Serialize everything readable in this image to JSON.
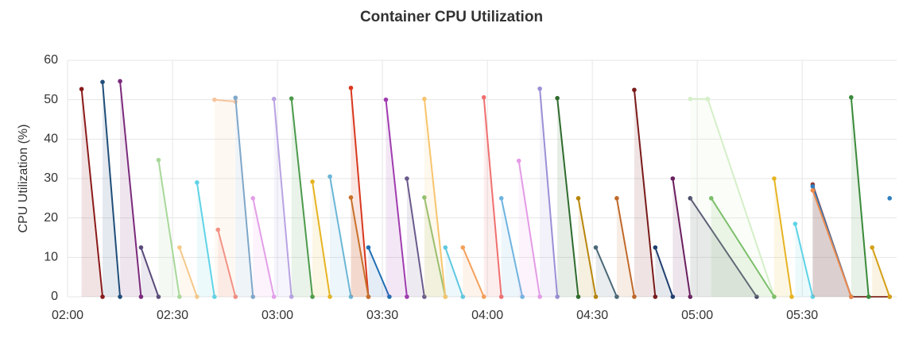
{
  "chart_data": {
    "type": "line",
    "title": "Container CPU Utilization",
    "y_label": "CPU Utilization (%)",
    "xlim": [
      "02:00",
      "05:57"
    ],
    "xticks": [
      "02:00",
      "02:30",
      "03:00",
      "03:30",
      "04:00",
      "04:30",
      "05:00",
      "05:30"
    ],
    "ylim": [
      0,
      60
    ],
    "yticks": [
      0,
      10,
      20,
      30,
      40,
      50,
      60
    ],
    "grid": true,
    "series": [
      {
        "color": "#8b1a1a",
        "x": [
          "02:04",
          "02:10"
        ],
        "values": [
          52.7,
          0
        ]
      },
      {
        "color": "#1f4e79",
        "x": [
          "02:10",
          "02:15"
        ],
        "values": [
          54.5,
          0
        ]
      },
      {
        "color": "#7b2a7b",
        "x": [
          "02:15",
          "02:21"
        ],
        "values": [
          54.7,
          0
        ]
      },
      {
        "color": "#5a4a7a",
        "x": [
          "02:21",
          "02:26"
        ],
        "values": [
          12.5,
          0
        ]
      },
      {
        "color": "#a8d89a",
        "x": [
          "02:26",
          "02:32"
        ],
        "values": [
          34.7,
          0
        ]
      },
      {
        "color": "#f5c98a",
        "x": [
          "02:32",
          "02:37"
        ],
        "values": [
          12.5,
          0
        ]
      },
      {
        "color": "#5fd3e6",
        "x": [
          "02:37",
          "02:42"
        ],
        "values": [
          29,
          0
        ]
      },
      {
        "color": "#f28b82",
        "x": [
          "02:43",
          "02:48"
        ],
        "values": [
          17,
          0
        ]
      },
      {
        "color": "#f7c59f",
        "x": [
          "02:42",
          "02:48"
        ],
        "values": [
          50,
          49.5
        ]
      },
      {
        "color": "#7fa7c9",
        "x": [
          "02:48",
          "02:53"
        ],
        "values": [
          50.5,
          0
        ]
      },
      {
        "color": "#e39fe8",
        "x": [
          "02:53",
          "02:59"
        ],
        "values": [
          25,
          0
        ]
      },
      {
        "color": "#b9a3e3",
        "x": [
          "02:59",
          "03:04"
        ],
        "values": [
          50.2,
          0
        ]
      },
      {
        "color": "#4c9a4c",
        "x": [
          "03:04",
          "03:10"
        ],
        "values": [
          50.3,
          0
        ]
      },
      {
        "color": "#e6b422",
        "x": [
          "03:10",
          "03:15"
        ],
        "values": [
          29.2,
          0
        ]
      },
      {
        "color": "#6bb6d6",
        "x": [
          "03:15",
          "03:21"
        ],
        "values": [
          30.5,
          0
        ]
      },
      {
        "color": "#d9381e",
        "x": [
          "03:21",
          "03:26"
        ],
        "values": [
          53,
          0
        ]
      },
      {
        "color": "#c8702a",
        "x": [
          "03:21",
          "03:26"
        ],
        "values": [
          25.2,
          0
        ]
      },
      {
        "color": "#1f6fb4",
        "x": [
          "03:26",
          "03:32"
        ],
        "values": [
          12.5,
          0
        ]
      },
      {
        "color": "#a03cb0",
        "x": [
          "03:31",
          "03:37"
        ],
        "values": [
          50,
          0
        ]
      },
      {
        "color": "#6a5a8c",
        "x": [
          "03:37",
          "03:42"
        ],
        "values": [
          30,
          0
        ]
      },
      {
        "color": "#8fbf6f",
        "x": [
          "03:42",
          "03:48"
        ],
        "values": [
          25.2,
          0
        ]
      },
      {
        "color": "#f7c56e",
        "x": [
          "03:42",
          "03:48"
        ],
        "values": [
          50.2,
          0
        ]
      },
      {
        "color": "#5fc8e0",
        "x": [
          "03:48",
          "03:53"
        ],
        "values": [
          12.5,
          0
        ]
      },
      {
        "color": "#f5a05a",
        "x": [
          "03:53",
          "03:59"
        ],
        "values": [
          12.5,
          0
        ]
      },
      {
        "color": "#f07070",
        "x": [
          "03:59",
          "04:04"
        ],
        "values": [
          50.6,
          0
        ]
      },
      {
        "color": "#6fb4e0",
        "x": [
          "04:04",
          "04:10"
        ],
        "values": [
          25,
          0
        ]
      },
      {
        "color": "#e49be6",
        "x": [
          "04:09",
          "04:15"
        ],
        "values": [
          34.5,
          0
        ]
      },
      {
        "color": "#9b8fd6",
        "x": [
          "04:15",
          "04:20"
        ],
        "values": [
          52.8,
          0
        ]
      },
      {
        "color": "#2e6b2e",
        "x": [
          "04:20",
          "04:26"
        ],
        "values": [
          50.4,
          0
        ]
      },
      {
        "color": "#b8860b",
        "x": [
          "04:26",
          "04:31"
        ],
        "values": [
          25,
          0
        ]
      },
      {
        "color": "#4a6878",
        "x": [
          "04:31",
          "04:37"
        ],
        "values": [
          12.5,
          0
        ]
      },
      {
        "color": "#c0692a",
        "x": [
          "04:37",
          "04:42"
        ],
        "values": [
          25,
          0
        ]
      },
      {
        "color": "#7a1a1a",
        "x": [
          "04:42",
          "04:48"
        ],
        "values": [
          52.5,
          0
        ]
      },
      {
        "color": "#1f3f6f",
        "x": [
          "04:48",
          "04:53"
        ],
        "values": [
          12.5,
          0
        ]
      },
      {
        "color": "#6a1f5f",
        "x": [
          "04:53",
          "04:58"
        ],
        "values": [
          30,
          0
        ]
      },
      {
        "color": "#4a4a6a",
        "x": [
          "04:58",
          "05:17"
        ],
        "values": [
          25,
          0
        ]
      },
      {
        "color": "#d5efc8",
        "x": [
          "04:58",
          "05:03",
          "05:22"
        ],
        "values": [
          50.2,
          50.2,
          0
        ]
      },
      {
        "color": "#7cbf6a",
        "x": [
          "05:04",
          "05:22"
        ],
        "values": [
          25,
          0
        ]
      },
      {
        "color": "#e6b422",
        "x": [
          "05:22",
          "05:27"
        ],
        "values": [
          30,
          0
        ]
      },
      {
        "color": "#5fd3e6",
        "x": [
          "05:28",
          "05:33"
        ],
        "values": [
          18.5,
          0
        ]
      },
      {
        "color": "#8b3a3a",
        "x": [
          "05:33",
          "05:44",
          "05:55"
        ],
        "values": [
          28.5,
          0,
          0
        ]
      },
      {
        "color": "#2f7fc1",
        "x": [
          "05:33",
          "05:44"
        ],
        "values": [
          28,
          0
        ]
      },
      {
        "color": "#f08a4b",
        "x": [
          "05:33",
          "05:44"
        ],
        "values": [
          27,
          0
        ]
      },
      {
        "color": "#3a8a3a",
        "x": [
          "05:44",
          "05:49"
        ],
        "values": [
          50.6,
          0
        ]
      },
      {
        "color": "#d4a017",
        "x": [
          "05:50",
          "05:55"
        ],
        "values": [
          12.5,
          0
        ]
      },
      {
        "color": "#2f7fc1",
        "x": [
          "05:55"
        ],
        "values": [
          25
        ]
      }
    ]
  }
}
